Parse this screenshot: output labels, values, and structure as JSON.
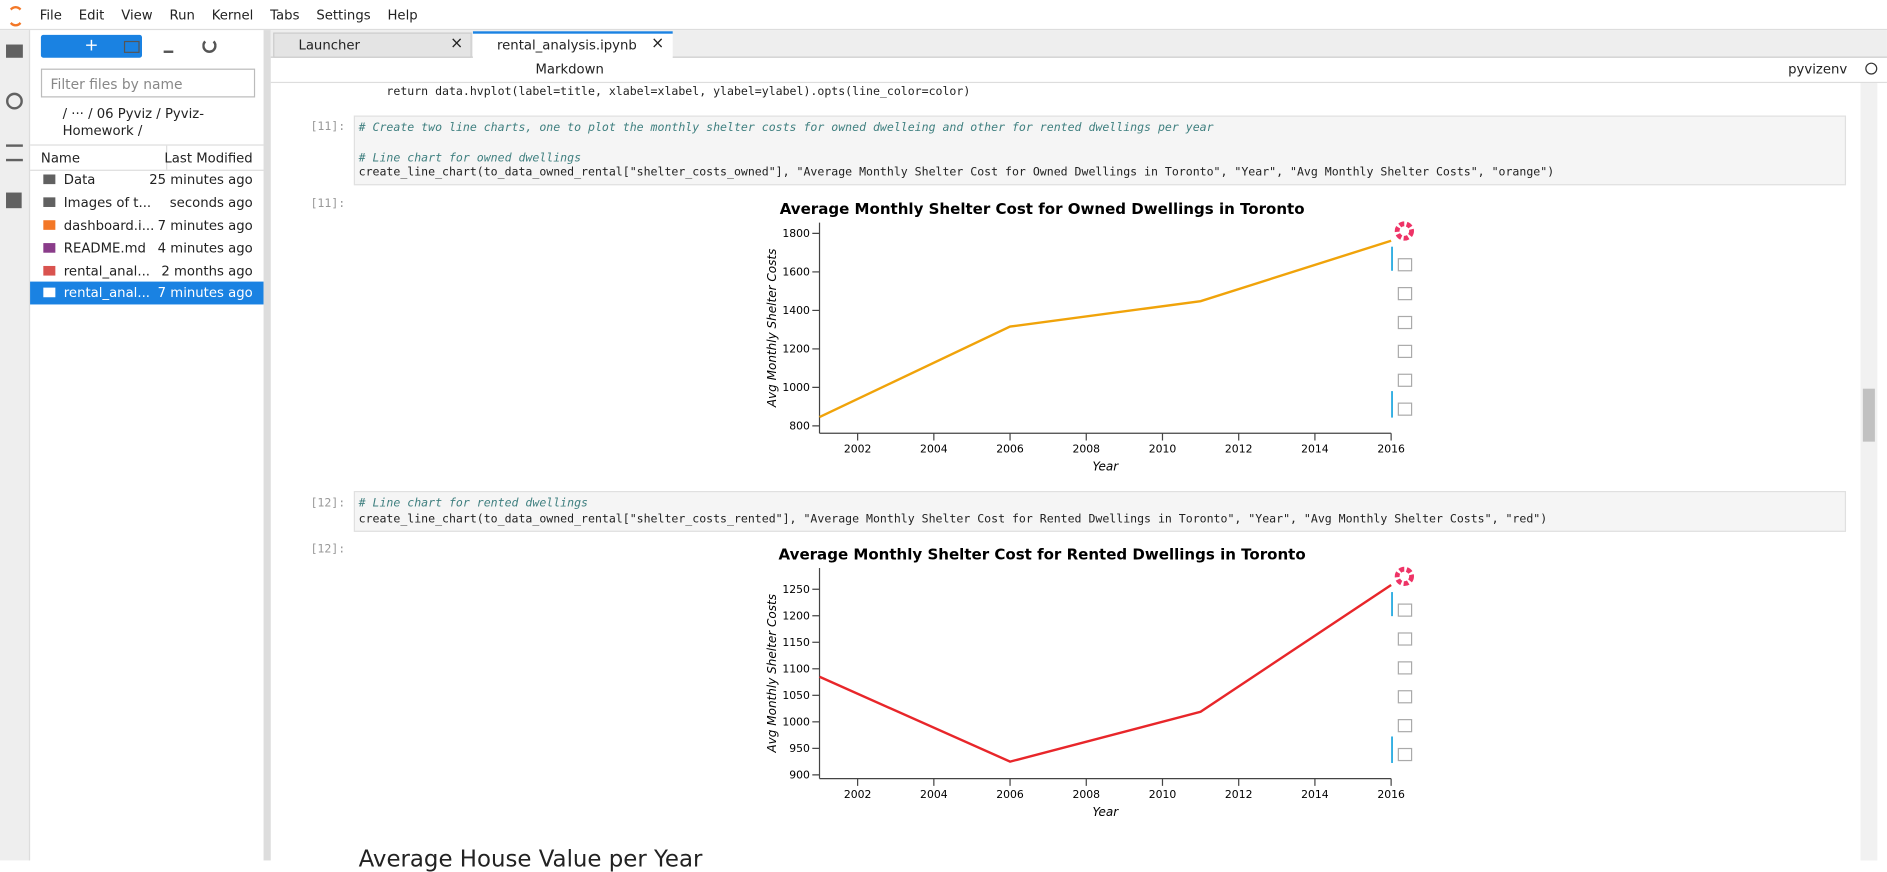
{
  "menu": [
    "File",
    "Edit",
    "View",
    "Run",
    "Kernel",
    "Tabs",
    "Settings",
    "Help"
  ],
  "file_browser": {
    "filter_placeholder": "Filter files by name",
    "breadcrumb": "/ ··· / 06 Pyviz / Pyviz-Homework /",
    "columns": [
      "Name",
      "Last Modified"
    ],
    "files": [
      {
        "name": "Data",
        "modified": "25 minutes ago"
      },
      {
        "name": "Images of t...",
        "modified": "seconds ago"
      },
      {
        "name": "dashboard.i...",
        "modified": "7 minutes ago"
      },
      {
        "name": "README.md",
        "modified": "4 minutes ago"
      },
      {
        "name": "rental_anal...",
        "modified": "2 months ago"
      },
      {
        "name": "rental_anal...",
        "modified": "7 minutes ago"
      }
    ]
  },
  "tabs": [
    "Launcher",
    "rental_analysis.ipynb"
  ],
  "toolbar": {
    "cell_type": "Markdown",
    "kernel": "pyvizenv"
  },
  "notebook": {
    "previous_line": "    return data.hvplot(label=title, xlabel=xlabel, ylabel=ylabel).opts(line_color=color)",
    "cells": [
      {
        "prompt": "[11]:",
        "comment_lines": [
          "# Create two line charts, one to plot the monthly shelter costs for owned dwelleing and other for rented dwellings per year",
          "# Line chart for owned dwellings"
        ],
        "code": "create_line_chart(to_data_owned_rental[\"shelter_costs_owned\"], \"Average Monthly Shelter Cost for Owned Dwellings in Toronto\", \"Year\", \"Avg Monthly Shelter Costs\", \"orange\")",
        "output_prompt": "[11]:"
      },
      {
        "prompt": "[12]:",
        "comment_lines": [
          "# Line chart for rented dwellings"
        ],
        "code": "create_line_chart(to_data_owned_rental[\"shelter_costs_rented\"], \"Average Monthly Shelter Cost for Rented Dwellings in Toronto\", \"Year\", \"Avg Monthly Shelter Costs\", \"red\")",
        "output_prompt": "[12]:"
      }
    ],
    "next_heading": "Average House Value per Year"
  },
  "chart_data": [
    {
      "type": "line",
      "title": "Average Monthly Shelter Cost for Owned Dwellings in Toronto",
      "xlabel": "Year",
      "ylabel": "Avg Monthly Shelter Costs",
      "x": [
        2001,
        2006,
        2011,
        2016
      ],
      "values": [
        846,
        1316,
        1448,
        1762
      ],
      "color": "#f0a30a",
      "xlim": [
        2001,
        2016
      ],
      "ylim": [
        762,
        1856
      ],
      "xticks": [
        2002,
        2004,
        2006,
        2008,
        2010,
        2012,
        2014,
        2016
      ],
      "yticks": [
        800,
        1000,
        1200,
        1400,
        1600,
        1800
      ]
    },
    {
      "type": "line",
      "title": "Average Monthly Shelter Cost for Rented Dwellings in Toronto",
      "xlabel": "Year",
      "ylabel": "Avg Monthly Shelter Costs",
      "x": [
        2001,
        2006,
        2011,
        2016
      ],
      "values": [
        1085,
        925,
        1019,
        1258
      ],
      "color": "#e8262a",
      "xlim": [
        2001,
        2016
      ],
      "ylim": [
        893,
        1290
      ],
      "xticks": [
        2002,
        2004,
        2006,
        2008,
        2010,
        2012,
        2014,
        2016
      ],
      "yticks": [
        900,
        950,
        1000,
        1050,
        1100,
        1150,
        1200,
        1250
      ]
    }
  ]
}
